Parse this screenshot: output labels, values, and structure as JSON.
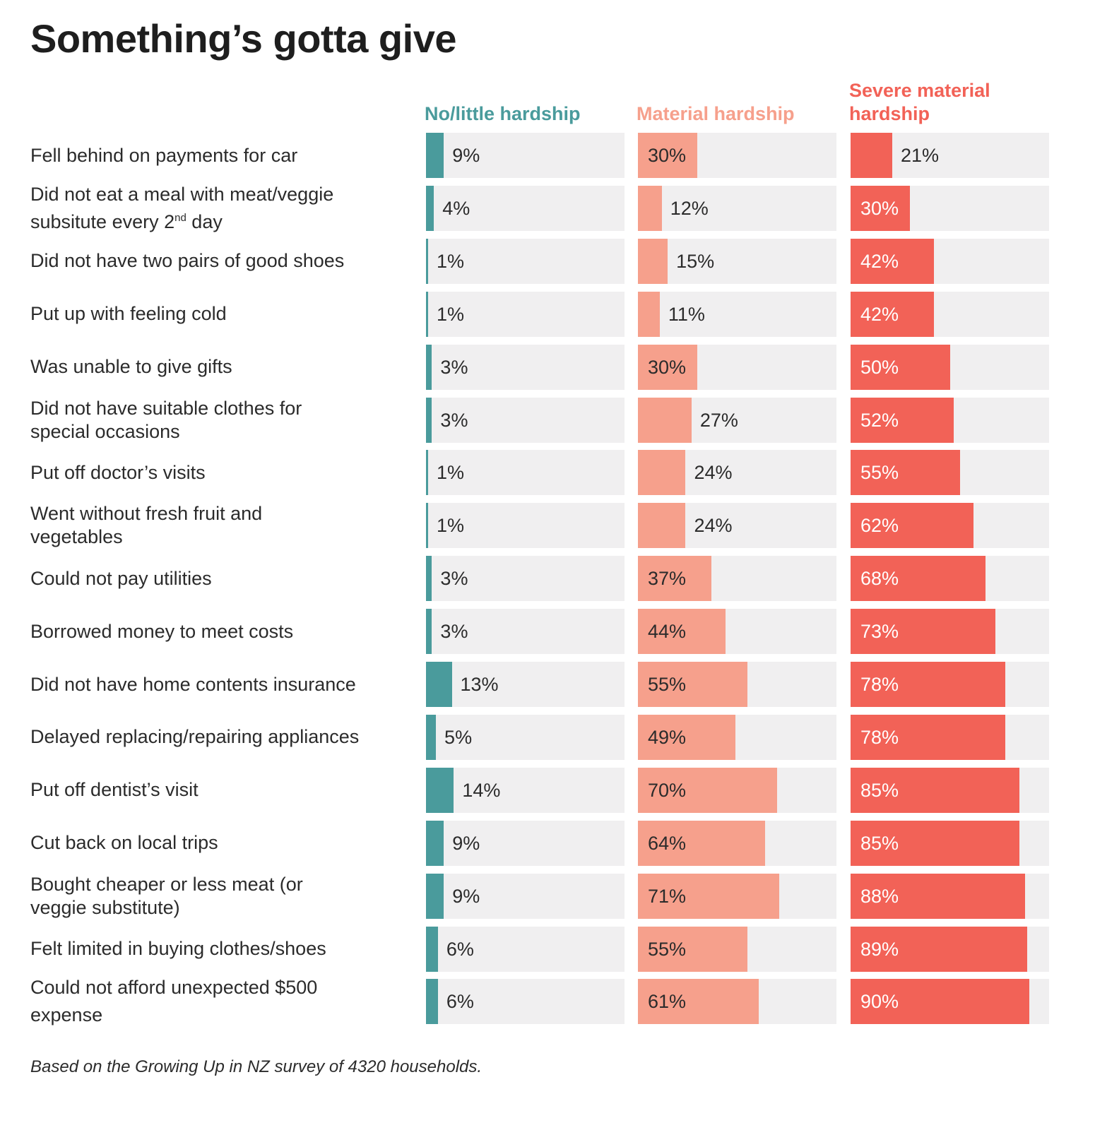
{
  "title": "Something’s gotta give",
  "footnote": "Based on the Growing Up in NZ survey of 4320 households.",
  "chart_data": {
    "type": "bar",
    "orientation": "horizontal",
    "title": "Something’s gotta give",
    "xlim": [
      0,
      100
    ],
    "unit": "%",
    "grid": false,
    "categories": [
      "Fell behind on payments for car",
      "Did not eat a meal with meat/veggie subsitute every 2nd day",
      "Did not have two pairs of good shoes",
      "Put up with feeling cold",
      "Was unable to give gifts",
      "Did not have suitable clothes for special occasions",
      "Put off doctor’s visits",
      "Went without fresh fruit and vegetables",
      "Could not pay utilities",
      "Borrowed money to meet costs",
      "Did not have home contents insurance",
      "Delayed replacing/repairing appliances",
      "Put off dentist’s visit",
      "Cut back on local trips",
      "Bought cheaper or less meat (or veggie substitute)",
      "Felt limited in buying clothes/shoes",
      "Could not afford unexpected $500 expense"
    ],
    "series": [
      {
        "name": "No/little hardship",
        "color": "#4a9b9c",
        "label_color_inside": "#2b2b2b",
        "values": [
          9,
          4,
          1,
          1,
          3,
          3,
          1,
          1,
          3,
          3,
          13,
          5,
          14,
          9,
          9,
          6,
          6
        ]
      },
      {
        "name": "Material hardship",
        "color": "#f6a08c",
        "label_color_inside": "#2b2b2b",
        "values": [
          30,
          12,
          15,
          11,
          30,
          27,
          24,
          24,
          37,
          44,
          55,
          49,
          70,
          64,
          71,
          55,
          61
        ]
      },
      {
        "name": "Severe material hardship",
        "color": "#f26257",
        "label_color_inside": "#ffffff",
        "values": [
          21,
          30,
          42,
          42,
          50,
          52,
          55,
          62,
          68,
          73,
          78,
          78,
          85,
          85,
          88,
          89,
          90
        ]
      }
    ]
  },
  "column_headers": [
    {
      "line1": "",
      "line2": "No/little hardship",
      "color": "#4a9b9c"
    },
    {
      "line1": "",
      "line2": "Material hardship",
      "color": "#f6a08c"
    },
    {
      "line1": "Severe material",
      "line2": "hardship",
      "color": "#f26257"
    }
  ],
  "row_labels": [
    {
      "lines": [
        "Fell behind on payments for car"
      ]
    },
    {
      "lines": [
        "Did not eat a meal with meat/veggie",
        "subsitute every 2"
      ],
      "sup": "nd",
      "tail": " day"
    },
    {
      "lines": [
        "Did not have two pairs of good shoes"
      ]
    },
    {
      "lines": [
        "Put up with feeling cold"
      ]
    },
    {
      "lines": [
        "Was unable to give gifts"
      ]
    },
    {
      "lines": [
        "Did not have suitable clothes for",
        "special occasions"
      ]
    },
    {
      "lines": [
        "Put off doctor’s visits"
      ]
    },
    {
      "lines": [
        "Went without fresh fruit and",
        "vegetables"
      ]
    },
    {
      "lines": [
        "Could not pay utilities"
      ]
    },
    {
      "lines": [
        "Borrowed money to meet costs"
      ]
    },
    {
      "lines": [
        "Did not have home contents insurance"
      ]
    },
    {
      "lines": [
        "Delayed replacing/repairing appliances"
      ]
    },
    {
      "lines": [
        "Put off dentist’s visit"
      ]
    },
    {
      "lines": [
        "Cut back on local trips"
      ]
    },
    {
      "lines": [
        "Bought cheaper or less meat (or",
        "veggie substitute)"
      ]
    },
    {
      "lines": [
        "Felt limited in buying clothes/shoes"
      ]
    },
    {
      "lines": [
        "Could not afford unexpected $500",
        "expense"
      ]
    }
  ]
}
